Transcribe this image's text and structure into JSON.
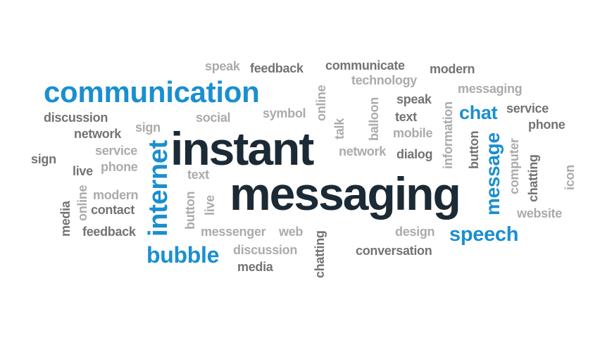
{
  "words": {
    "instant": "instant",
    "messaging": "messaging",
    "communication": "communication",
    "internet": "internet",
    "bubble": "bubble",
    "speech": "speech",
    "chat": "chat",
    "message": "message",
    "speak_top": "speak",
    "feedback_top": "feedback",
    "communicate": "communicate",
    "modern_top": "modern",
    "technology": "technology",
    "speak_2": "speak",
    "messaging_small": "messaging",
    "discussion_left": "discussion",
    "social": "social",
    "symbol": "symbol",
    "online_vertical_mid": "online",
    "network_left": "network",
    "sign_left_upper": "sign",
    "service_left": "service",
    "phone_left": "phone",
    "sign_far_left": "sign",
    "live_left": "live",
    "text_mid": "text",
    "talk": "talk",
    "balloon": "balloon",
    "text_right": "text",
    "mobile": "mobile",
    "network_mid": "network",
    "dialog": "dialog",
    "information": "information",
    "button_right": "button",
    "service_right": "service",
    "phone_right": "phone",
    "computer": "computer",
    "chatting_right": "chatting",
    "icon": "icon",
    "website": "website",
    "media_left": "media",
    "online_left": "online",
    "modern_left": "modern",
    "contact": "contact",
    "button_mid": "button",
    "live_mid": "live",
    "feedback_left": "feedback",
    "messenger": "messenger",
    "web": "web",
    "chatting_mid": "chatting",
    "design": "design",
    "conversation": "conversation",
    "discussion_bottom": "discussion",
    "media_bottom": "media"
  },
  "colors": {
    "primary_dark": "#1b2a35",
    "accent_blue": "#1a8fd0",
    "gray_mid": "#737373",
    "gray_light": "#ababab",
    "background": "#ffffff"
  }
}
